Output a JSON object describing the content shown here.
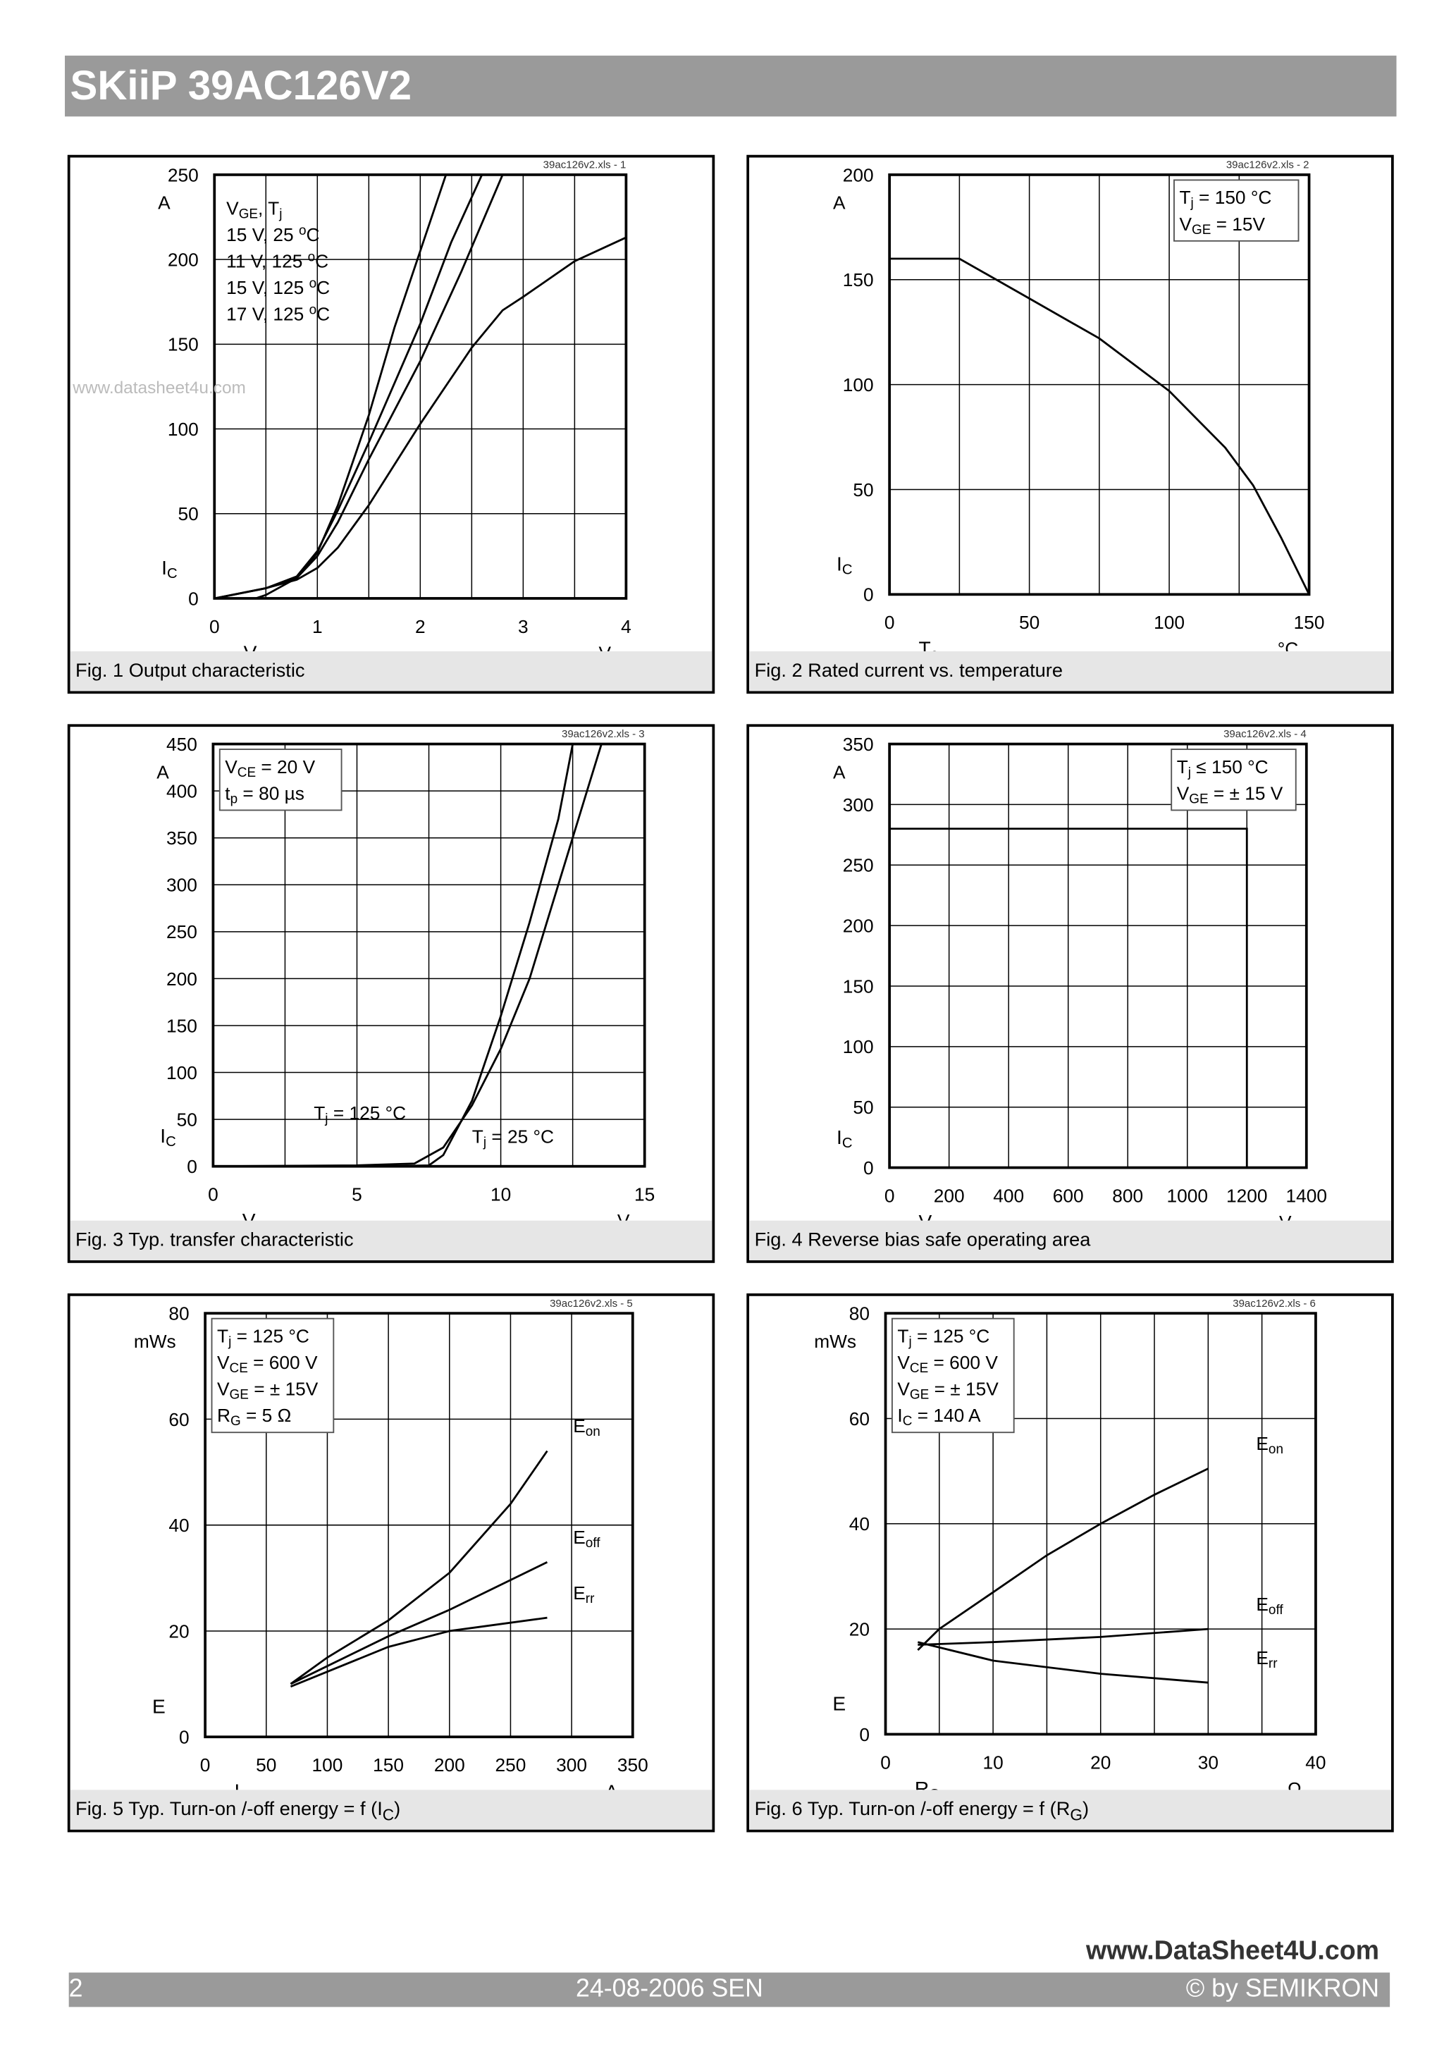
{
  "header": {
    "title": "SKiiP 39AC126V2"
  },
  "footer": {
    "page": "2",
    "date": "24-08-2006  SEN",
    "copyright": "© by SEMIKRON",
    "watermark": "www.DataSheet4U.com"
  },
  "watermark_fig1": "www.datasheet4u.com",
  "colors": {
    "header_bg": "#9a9a9a",
    "caption_bg": "#e6e6e6",
    "grid": "#000000"
  },
  "chart_data": [
    {
      "type": "line",
      "file_tag": "39ac126v2.xls - 1",
      "caption": "Fig. 1 Output characteristic",
      "ylabel": {
        "sym": "I",
        "sub": "C"
      },
      "yunit": "A",
      "xlabel": {
        "sym": "V",
        "sub": "CE"
      },
      "xunit": "V",
      "xlim": [
        0,
        4
      ],
      "ylim": [
        0,
        250
      ],
      "xticks": [
        0,
        1,
        2,
        3,
        4
      ],
      "yticks": [
        0,
        50,
        100,
        150,
        200,
        250
      ],
      "xgrid": 0.5,
      "ygrid": 50,
      "grid": true,
      "legend": {
        "placement": "top-left",
        "boxed": false,
        "lines": [
          [
            {
              "t": "V"
            },
            {
              "s": "GE"
            },
            {
              "t": ",        T"
            },
            {
              "s": "j"
            }
          ],
          [
            {
              "t": "15 V,   25 "
            },
            {
              "p": "o"
            },
            {
              "t": "C"
            }
          ],
          [
            {
              "t": "11 V, 125 "
            },
            {
              "p": "o"
            },
            {
              "t": "C"
            }
          ],
          [
            {
              "t": "15 V, 125 "
            },
            {
              "p": "o"
            },
            {
              "t": "C"
            }
          ],
          [
            {
              "t": "17 V, 125 "
            },
            {
              "p": "o"
            },
            {
              "t": "C"
            }
          ]
        ]
      },
      "series": [
        {
          "name": "15 V, 25 °C",
          "x": [
            0,
            0.4,
            0.5,
            0.8,
            1,
            1.2,
            1.5,
            1.75,
            2,
            2.25
          ],
          "y": [
            0,
            0,
            2,
            12,
            27,
            55,
            108,
            160,
            205,
            250
          ]
        },
        {
          "name": "11 V, 125 °C",
          "x": [
            0,
            0.5,
            0.8,
            1,
            1.2,
            1.5,
            2,
            2.5,
            2.8,
            3,
            3.5,
            4
          ],
          "y": [
            0,
            6,
            11,
            18,
            30,
            55,
            103,
            148,
            170,
            178,
            199,
            213
          ]
        },
        {
          "name": "15 V, 125 °C",
          "x": [
            0,
            0.5,
            0.8,
            1,
            1.2,
            1.5,
            2,
            2.4,
            2.8
          ],
          "y": [
            0,
            6,
            12,
            25,
            45,
            82,
            140,
            193,
            250
          ]
        },
        {
          "name": "17 V, 125 °C",
          "x": [
            0,
            0.5,
            0.8,
            1,
            1.2,
            1.5,
            2,
            2.3,
            2.6
          ],
          "y": [
            0,
            6,
            13,
            28,
            52,
            92,
            162,
            210,
            250
          ]
        }
      ]
    },
    {
      "type": "line",
      "file_tag": "39ac126v2.xls - 2",
      "caption": "Fig. 2 Rated current vs. temperature",
      "ylabel": {
        "sym": "I",
        "sub": "C"
      },
      "yunit": "A",
      "xlabel": {
        "sym": "T",
        "sub": "c"
      },
      "xunit": "°C",
      "xlim": [
        0,
        150
      ],
      "ylim": [
        0,
        200
      ],
      "xticks": [
        0,
        50,
        100,
        150
      ],
      "yticks": [
        0,
        50,
        100,
        150,
        200
      ],
      "xgrid": 25,
      "ygrid": 50,
      "grid": true,
      "legend": {
        "placement": "top-right",
        "boxed": true,
        "lines": [
          [
            {
              "t": "T"
            },
            {
              "s": "j"
            },
            {
              "t": "    = 150 °C"
            }
          ],
          [
            {
              "t": "V"
            },
            {
              "s": "GE"
            },
            {
              "t": " = 15V"
            }
          ]
        ]
      },
      "series": [
        {
          "x": [
            0,
            25,
            50,
            75,
            100,
            120,
            130,
            140,
            150
          ],
          "y": [
            160,
            160,
            141,
            122,
            97,
            70,
            52,
            27,
            0
          ]
        }
      ]
    },
    {
      "type": "line",
      "file_tag": "39ac126v2.xls - 3",
      "caption": "Fig. 3 Typ. transfer characteristic",
      "ylabel": {
        "sym": "I",
        "sub": "C"
      },
      "yunit": "A",
      "xlabel": {
        "sym": "V",
        "sub": "GE"
      },
      "xunit": "V",
      "xlim": [
        0,
        15
      ],
      "ylim": [
        0,
        450
      ],
      "xticks": [
        0,
        5,
        10,
        15
      ],
      "yticks": [
        0,
        50,
        100,
        150,
        200,
        250,
        300,
        350,
        400,
        450
      ],
      "xgrid": 2.5,
      "ygrid": 50,
      "grid": true,
      "legend": {
        "placement": "top-left",
        "boxed": true,
        "lines": [
          [
            {
              "t": "V"
            },
            {
              "s": "CE"
            },
            {
              "t": " = 20 V"
            }
          ],
          [
            {
              "t": "t"
            },
            {
              "s": "p"
            },
            {
              "t": "     = 80 µs"
            }
          ]
        ]
      },
      "annotations": [
        {
          "x": 3.5,
          "y": 50,
          "parts": [
            {
              "t": "T"
            },
            {
              "s": "j"
            },
            {
              "t": " = 125 °C"
            }
          ]
        },
        {
          "x": 9,
          "y": 25,
          "parts": [
            {
              "t": "T"
            },
            {
              "s": "j"
            },
            {
              "t": " = 25 °C"
            }
          ]
        }
      ],
      "series": [
        {
          "name": "Tj = 125 °C",
          "x": [
            0,
            5,
            7,
            8,
            9,
            10,
            11,
            12,
            13,
            13.5
          ],
          "y": [
            0,
            1,
            3,
            20,
            65,
            125,
            200,
            300,
            400,
            450
          ]
        },
        {
          "name": "Tj = 25 °C",
          "x": [
            0,
            6,
            7.5,
            8,
            9,
            10,
            11,
            12,
            12.5
          ],
          "y": [
            0,
            0,
            1,
            12,
            70,
            160,
            260,
            370,
            450
          ]
        }
      ]
    },
    {
      "type": "line",
      "file_tag": "39ac126v2.xls - 4",
      "caption": "Fig. 4 Reverse bias safe operating area",
      "ylabel": {
        "sym": "I",
        "sub": "C"
      },
      "yunit": "A",
      "xlabel": {
        "sym": "V",
        "sub": "CE"
      },
      "xunit": "V",
      "xlim": [
        0,
        1400
      ],
      "ylim": [
        0,
        350
      ],
      "xticks": [
        0,
        200,
        400,
        600,
        800,
        1000,
        1200,
        1400
      ],
      "yticks": [
        0,
        50,
        100,
        150,
        200,
        250,
        300,
        350
      ],
      "xgrid": 200,
      "ygrid": 50,
      "grid": true,
      "legend": {
        "placement": "top-right",
        "boxed": true,
        "lines": [
          [
            {
              "t": "T"
            },
            {
              "s": "j"
            },
            {
              "t": "    ≤ 150 °C"
            }
          ],
          [
            {
              "t": "V"
            },
            {
              "s": "GE"
            },
            {
              "t": " = ± 15 V"
            }
          ]
        ]
      },
      "series": [
        {
          "x": [
            0,
            1200,
            1200
          ],
          "y": [
            280,
            280,
            0
          ]
        }
      ]
    },
    {
      "type": "line",
      "file_tag": "39ac126v2.xls - 5",
      "caption": "Fig. 5 Typ. Turn-on /-off energy = f (I",
      "caption_sub": "C",
      "caption_end": ")",
      "ylabel": {
        "sym": "E",
        "sub": ""
      },
      "yunit": "mWs",
      "xlabel": {
        "sym": "I",
        "sub": "C"
      },
      "xunit": "A",
      "xlim": [
        0,
        350
      ],
      "ylim": [
        0,
        80
      ],
      "xticks": [
        0,
        50,
        100,
        150,
        200,
        250,
        300,
        350
      ],
      "yticks": [
        0,
        20,
        40,
        60,
        80
      ],
      "xgrid": 50,
      "ygrid": 20,
      "grid": true,
      "legend": {
        "placement": "top-left",
        "boxed": true,
        "lines": [
          [
            {
              "t": "T"
            },
            {
              "s": "j"
            },
            {
              "t": "    = 125 °C"
            }
          ],
          [
            {
              "t": "V"
            },
            {
              "s": "CE"
            },
            {
              "t": " = 600 V"
            }
          ],
          [
            {
              "t": "V"
            },
            {
              "s": "GE"
            },
            {
              "t": " = ± 15V"
            }
          ],
          [
            {
              "t": "R"
            },
            {
              "s": "G"
            },
            {
              "t": "    = 5 Ω"
            }
          ]
        ]
      },
      "series": [
        {
          "name": "Eon",
          "label": {
            "t": "E",
            "s": "on"
          },
          "x": [
            70,
            100,
            150,
            200,
            250,
            280
          ],
          "y": [
            10,
            15,
            22,
            31,
            44,
            54
          ]
        },
        {
          "name": "Eoff",
          "label": {
            "t": "E",
            "s": "off"
          },
          "x": [
            70,
            150,
            200,
            280
          ],
          "y": [
            10,
            19,
            24,
            33
          ]
        },
        {
          "name": "Err",
          "label": {
            "t": "E",
            "s": "rr"
          },
          "x": [
            70,
            150,
            200,
            280
          ],
          "y": [
            9.5,
            17,
            20,
            22.5
          ]
        }
      ]
    },
    {
      "type": "line",
      "file_tag": "39ac126v2.xls - 6",
      "caption": "Fig. 6 Typ. Turn-on /-off energy = f (R",
      "caption_sub": "G",
      "caption_end": ")",
      "ylabel": {
        "sym": "E",
        "sub": ""
      },
      "yunit": "mWs",
      "xlabel": {
        "sym": "R",
        "sub": "G"
      },
      "xunit": "Ω",
      "xlim": [
        0,
        40
      ],
      "ylim": [
        0,
        80
      ],
      "xticks": [
        0,
        10,
        20,
        30,
        40
      ],
      "yticks": [
        0,
        20,
        40,
        60,
        80
      ],
      "xgrid": 5,
      "ygrid": 20,
      "grid": true,
      "legend": {
        "placement": "top-left",
        "boxed": true,
        "lines": [
          [
            {
              "t": "T"
            },
            {
              "s": "j"
            },
            {
              "t": "    = 125 °C"
            }
          ],
          [
            {
              "t": "V"
            },
            {
              "s": "CE"
            },
            {
              "t": " = 600 V"
            }
          ],
          [
            {
              "t": "V"
            },
            {
              "s": "GE"
            },
            {
              "t": " = ± 15V"
            }
          ],
          [
            {
              "t": "I"
            },
            {
              "s": "C"
            },
            {
              "t": "     = 140 A"
            }
          ]
        ]
      },
      "series": [
        {
          "name": "Eon",
          "label": {
            "t": "E",
            "s": "on"
          },
          "x": [
            3,
            5,
            10,
            15,
            20,
            25,
            30
          ],
          "y": [
            16,
            20,
            27,
            34,
            40,
            45.5,
            50.5
          ]
        },
        {
          "name": "Eoff",
          "label": {
            "t": "E",
            "s": "off"
          },
          "x": [
            3,
            10,
            20,
            30
          ],
          "y": [
            17,
            17.5,
            18.5,
            20
          ]
        },
        {
          "name": "Err",
          "label": {
            "t": "E",
            "s": "rr"
          },
          "x": [
            3,
            10,
            20,
            30
          ],
          "y": [
            17.5,
            14,
            11.5,
            9.8
          ]
        }
      ]
    }
  ]
}
